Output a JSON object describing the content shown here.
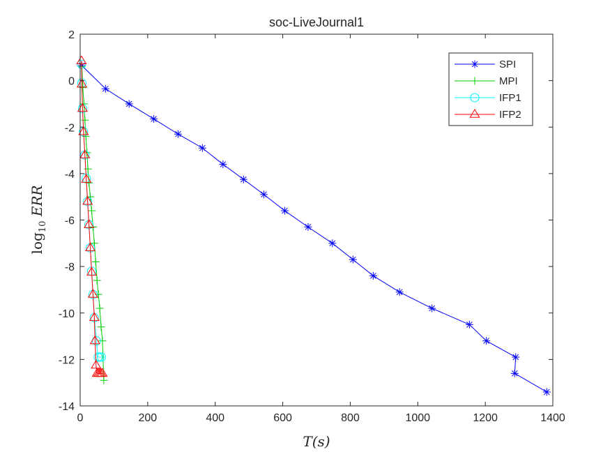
{
  "chart_data": {
    "type": "line",
    "title": "soc-LiveJournal1",
    "xlabel": "T(s)",
    "ylabel": {
      "prefix": "log",
      "sub": "10",
      "suffix": " ERR"
    },
    "xlim": [
      0,
      1400
    ],
    "ylim": [
      -14,
      2
    ],
    "xticks": [
      0,
      200,
      400,
      600,
      800,
      1000,
      1200,
      1400
    ],
    "yticks": [
      2,
      0,
      -2,
      -4,
      -6,
      -8,
      -10,
      -12,
      -14
    ],
    "grid": false,
    "legend_position": "top-right",
    "series": [
      {
        "name": "SPI",
        "color": "#0000ff",
        "marker": "asterisk",
        "x": [
          5,
          75,
          145,
          218,
          290,
          362,
          423,
          484,
          544,
          606,
          675,
          747,
          808,
          868,
          946,
          1042,
          1153,
          1203,
          1290,
          1287,
          1382
        ],
        "y": [
          0.65,
          -0.35,
          -1.0,
          -1.65,
          -2.3,
          -2.9,
          -3.6,
          -4.25,
          -4.9,
          -5.6,
          -6.3,
          -7.0,
          -7.7,
          -8.4,
          -9.1,
          -9.8,
          -10.5,
          -11.2,
          -11.9,
          -12.6,
          -13.4
        ]
      },
      {
        "name": "MPI",
        "color": "#00cc00",
        "marker": "plus",
        "x": [
          5,
          8,
          11,
          14,
          17,
          20,
          23,
          26,
          30,
          34,
          38,
          42,
          46,
          50,
          54,
          58,
          62,
          66,
          70
        ],
        "y": [
          0.6,
          -0.3,
          -1.0,
          -1.7,
          -2.4,
          -3.1,
          -3.8,
          -4.4,
          -5.0,
          -5.6,
          -6.3,
          -7.0,
          -7.8,
          -8.6,
          -9.2,
          -9.8,
          -10.6,
          -11.2,
          -12.9
        ]
      },
      {
        "name": "IFP1",
        "color": "#00ffff",
        "marker": "circle",
        "x": [
          4,
          5,
          7,
          10,
          14,
          18,
          22,
          26,
          30,
          34,
          38,
          42,
          48,
          53,
          58,
          63
        ],
        "y": [
          0.7,
          -0.1,
          -1.2,
          -2.2,
          -3.2,
          -4.2,
          -5.2,
          -6.2,
          -7.2,
          -8.2,
          -9.2,
          -10.2,
          -11.2,
          -11.9,
          -11.9,
          -11.9
        ]
      },
      {
        "name": "IFP2",
        "color": "#ff0000",
        "marker": "triangle",
        "x": [
          4,
          5,
          7,
          10,
          14,
          18,
          22,
          26,
          30,
          34,
          38,
          42,
          44,
          47,
          50,
          54,
          58,
          62,
          66
        ],
        "y": [
          0.85,
          -0.15,
          -1.2,
          -2.2,
          -3.2,
          -4.25,
          -5.2,
          -6.2,
          -7.2,
          -8.25,
          -9.2,
          -10.2,
          -11.2,
          -12.25,
          -12.6,
          -12.6,
          -12.6,
          -12.6,
          -12.6
        ]
      }
    ]
  }
}
